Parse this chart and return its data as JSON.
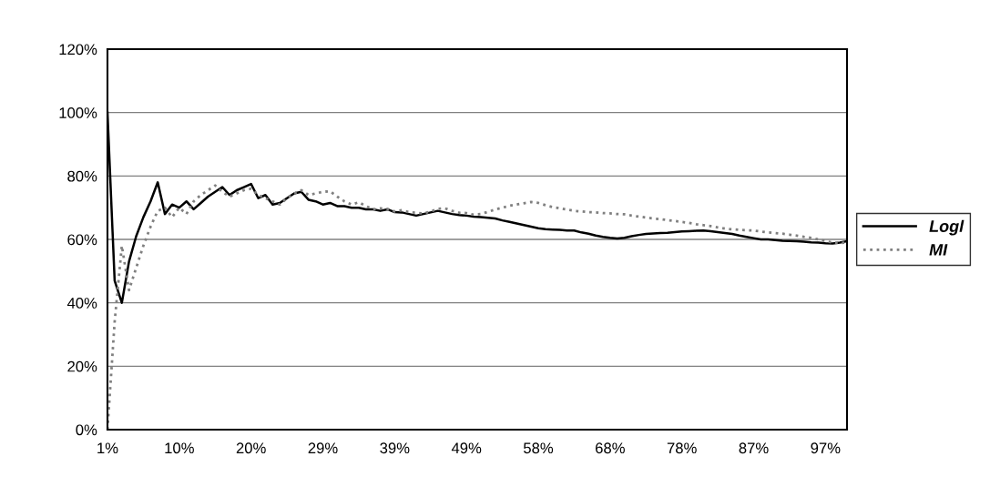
{
  "chart_data": {
    "type": "line",
    "categories": [
      "1%",
      null,
      null,
      null,
      null,
      null,
      null,
      null,
      null,
      null,
      "10%",
      null,
      null,
      null,
      null,
      null,
      null,
      null,
      null,
      null,
      "20%",
      null,
      null,
      null,
      null,
      null,
      null,
      null,
      null,
      null,
      "29%",
      null,
      null,
      null,
      null,
      null,
      null,
      null,
      null,
      null,
      "39%",
      null,
      null,
      null,
      null,
      null,
      null,
      null,
      null,
      null,
      "49%",
      null,
      null,
      null,
      null,
      null,
      null,
      null,
      null,
      null,
      "58%",
      null,
      null,
      null,
      null,
      null,
      null,
      null,
      null,
      null,
      "68%",
      null,
      null,
      null,
      null,
      null,
      null,
      null,
      null,
      null,
      "78%",
      null,
      null,
      null,
      null,
      null,
      null,
      null,
      null,
      null,
      "87%",
      null,
      null,
      null,
      null,
      null,
      null,
      null,
      null,
      null,
      "97%",
      null,
      null,
      null
    ],
    "series": [
      {
        "name": "Logl",
        "color": "#000000",
        "line_style": "solid",
        "values": [
          100,
          47,
          40,
          53,
          61,
          67,
          72,
          78,
          68,
          71,
          70,
          72,
          69.5,
          71.5,
          73.5,
          75,
          76.5,
          74,
          75.5,
          76.5,
          77.5,
          73,
          74,
          71,
          71.5,
          73,
          74.5,
          75,
          72.5,
          72,
          71,
          71.5,
          70.5,
          70.5,
          70,
          70,
          69.5,
          69.5,
          69,
          69.5,
          68.6,
          68.5,
          68,
          67.5,
          68,
          68.5,
          69,
          68.5,
          68,
          67.7,
          67.5,
          67.2,
          67,
          66.8,
          66.6,
          66,
          65.5,
          65,
          64.5,
          64,
          63.5,
          63.2,
          63.1,
          63,
          62.8,
          62.8,
          62.2,
          61.8,
          61.2,
          60.8,
          60.5,
          60.3,
          60.5,
          61,
          61.4,
          61.7,
          61.9,
          62,
          62.1,
          62.3,
          62.5,
          62.6,
          62.7,
          62.8,
          62.6,
          62.3,
          62,
          61.7,
          61.2,
          60.8,
          60.4,
          60,
          60,
          59.8,
          59.6,
          59.5,
          59.4,
          59.3,
          59.1,
          59,
          58.8,
          58.7,
          59,
          59.4
        ]
      },
      {
        "name": "MI",
        "color": "#808080",
        "line_style": "dotted",
        "values": [
          0,
          34,
          58,
          44,
          51,
          58,
          64,
          69,
          70,
          67,
          70,
          68,
          72,
          74,
          75.5,
          77,
          75,
          73.5,
          74.5,
          75.5,
          76,
          74,
          73,
          72,
          71,
          73,
          74.5,
          75.5,
          74,
          74.5,
          75,
          75.2,
          73.5,
          72,
          71,
          71.7,
          70.5,
          69.5,
          69.8,
          69.6,
          68.8,
          69.2,
          68.6,
          68.4,
          68.2,
          68.8,
          69.6,
          69.8,
          69,
          68.4,
          68.3,
          67.8,
          68,
          68.7,
          69.4,
          70,
          70.6,
          71,
          71.4,
          71.8,
          71.5,
          70.8,
          70.2,
          69.8,
          69.4,
          69,
          68.8,
          68.6,
          68.5,
          68.3,
          68.2,
          68,
          67.9,
          67.5,
          67.2,
          66.9,
          66.6,
          66.4,
          66.1,
          65.8,
          65.5,
          65.2,
          64.8,
          64.5,
          64.2,
          63.8,
          63.4,
          63.2,
          63,
          62.9,
          62.8,
          62.5,
          62.2,
          62,
          61.8,
          61.5,
          61.2,
          60.8,
          60.5,
          60,
          59.5,
          59,
          58.8,
          59
        ]
      }
    ],
    "ylim": [
      0,
      120
    ],
    "yticks": [
      {
        "value": 0,
        "label": "0%"
      },
      {
        "value": 20,
        "label": "20%"
      },
      {
        "value": 40,
        "label": "40%"
      },
      {
        "value": 60,
        "label": "60%"
      },
      {
        "value": 80,
        "label": "80%"
      },
      {
        "value": 100,
        "label": "100%"
      },
      {
        "value": 120,
        "label": "120%"
      }
    ],
    "grid": "y",
    "legend": "right"
  }
}
